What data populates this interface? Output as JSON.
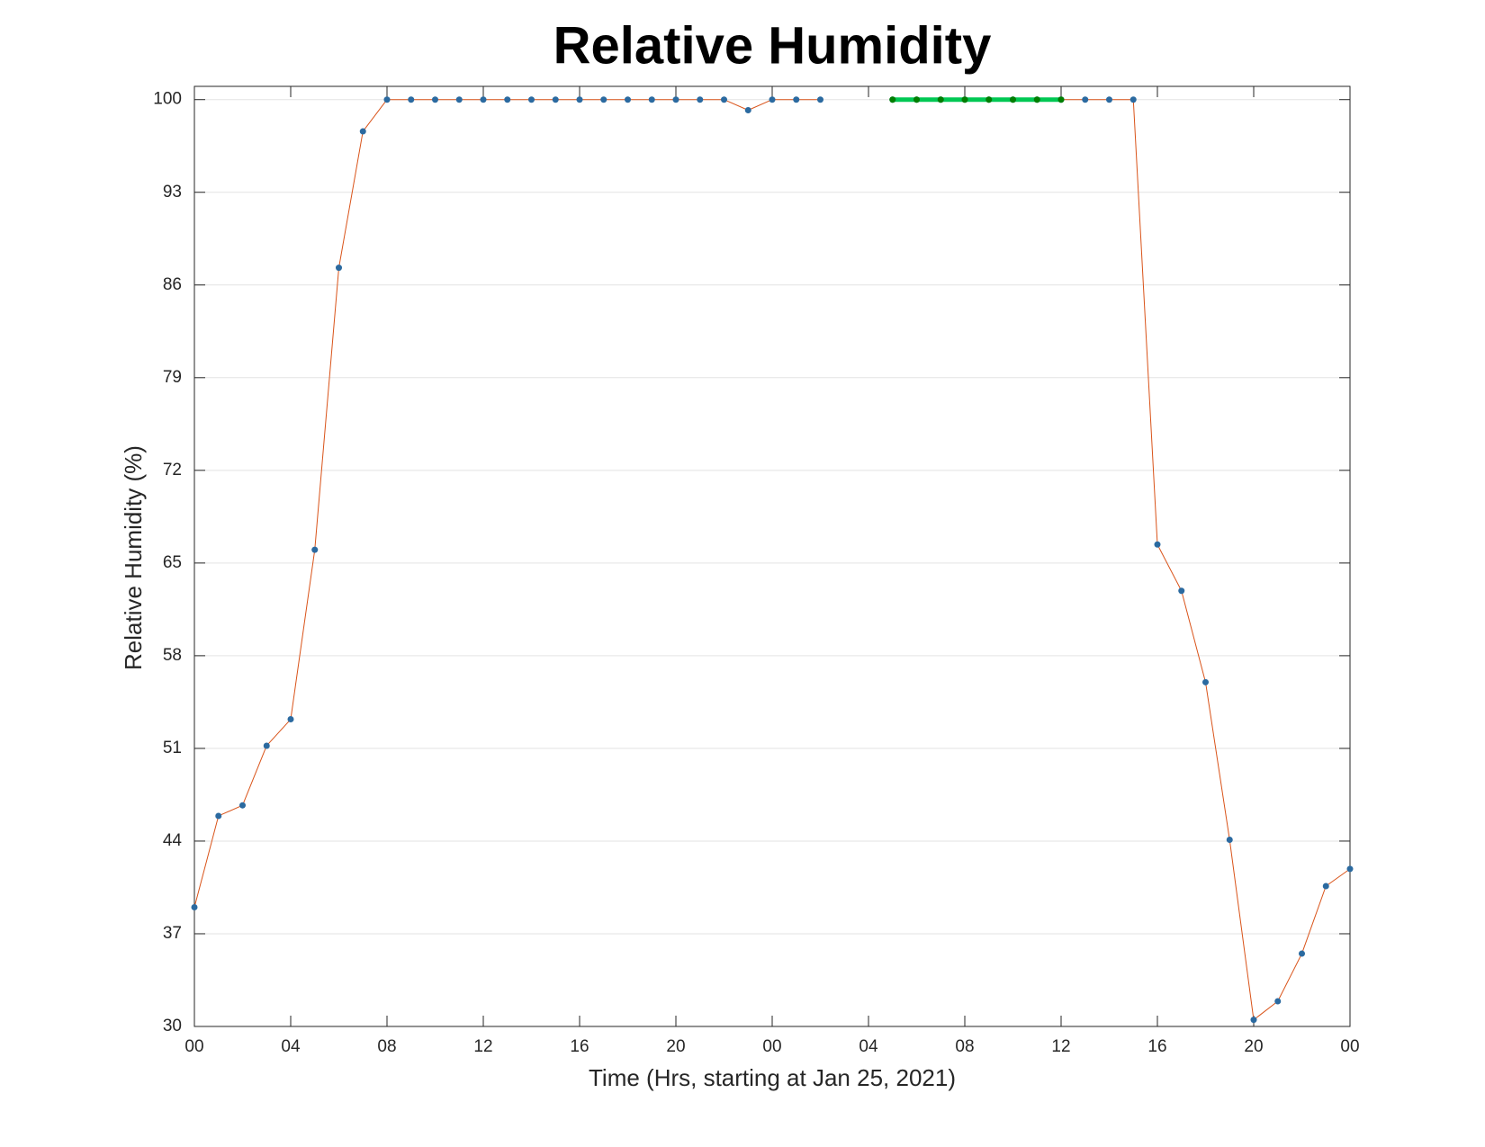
{
  "chart_data": {
    "type": "line",
    "title": "Relative Humidity",
    "xlabel": "Time (Hrs, starting at Jan 25, 2021)",
    "ylabel": "Relative Humidity (%)",
    "x": [
      0,
      1,
      2,
      3,
      4,
      5,
      6,
      7,
      8,
      9,
      10,
      11,
      12,
      13,
      14,
      15,
      16,
      17,
      18,
      19,
      20,
      21,
      22,
      23,
      24,
      25,
      26,
      27,
      28,
      29,
      30,
      31,
      32,
      33,
      34,
      35,
      36,
      37,
      38,
      39,
      40,
      41,
      42,
      43,
      44,
      45,
      46,
      47,
      48
    ],
    "series": [
      {
        "color": "#d95319",
        "marker_color": "#2b6aa0",
        "line_width": 1,
        "values": [
          39.0,
          45.9,
          46.7,
          51.2,
          53.2,
          66.0,
          87.3,
          97.6,
          100,
          100,
          100,
          100,
          100,
          100,
          100,
          100,
          100,
          100,
          100,
          100,
          100,
          100,
          100,
          99.2,
          100,
          100,
          100,
          null,
          null,
          100,
          100,
          100,
          100,
          100,
          100,
          100,
          100,
          100,
          100,
          100,
          66.4,
          62.9,
          56.0,
          44.1,
          30.5,
          31.9,
          35.5,
          40.6,
          41.9
        ]
      },
      {
        "color": "#00c853",
        "marker_color": "#007f00",
        "line_width": 5,
        "values": [
          null,
          null,
          null,
          null,
          null,
          null,
          null,
          null,
          null,
          null,
          null,
          null,
          null,
          null,
          null,
          null,
          null,
          null,
          null,
          null,
          null,
          null,
          null,
          null,
          null,
          null,
          null,
          null,
          null,
          100,
          100,
          100,
          100,
          100,
          100,
          100,
          100,
          null,
          null,
          null,
          null,
          null,
          null,
          null,
          null,
          null,
          null,
          null,
          null
        ]
      }
    ],
    "xlim": [
      0,
      48
    ],
    "xticks": [
      {
        "value": 0,
        "label": "00"
      },
      {
        "value": 4,
        "label": "04"
      },
      {
        "value": 8,
        "label": "08"
      },
      12,
      16,
      20,
      {
        "value": 24,
        "label": "00"
      },
      {
        "value": 28,
        "label": "04"
      },
      {
        "value": 32,
        "label": "08"
      },
      {
        "value": 36,
        "label": "12"
      },
      {
        "value": 40,
        "label": "16"
      },
      {
        "value": 44,
        "label": "20"
      },
      {
        "value": 48,
        "label": "00"
      }
    ],
    "ylim": [
      30,
      101
    ],
    "yticks": [
      30,
      37,
      44,
      51,
      58,
      65,
      72,
      79,
      86,
      93,
      100
    ],
    "grid": true
  }
}
